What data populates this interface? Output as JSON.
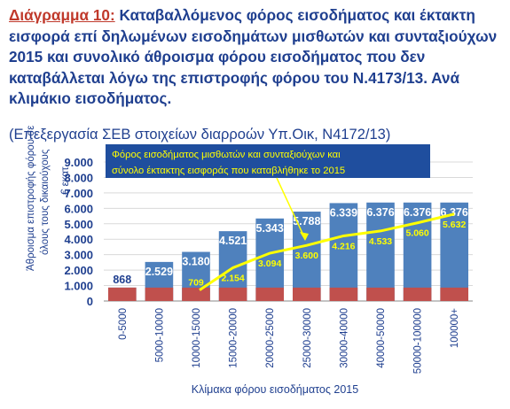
{
  "title_label": "Διάγραμμα 10:",
  "title_text": " Καταβαλλόμενος φόρος εισοδήματος και έκτακτη εισφορά επί δηλωμένων εισοδημάτων μισθωτών και συνταξιούχων 2015 και συνολικό άθροισμα φόρου εισοδήματος που δεν καταβάλλεται λόγω της επιστροφής φόρου του Ν.4173/13. Ανά κλιμάκιο εισοδήματος.",
  "subtitle": "(Επεξεργασία ΣΕΒ στοιχείων διαρροών Υπ.Οικ, Ν4172/13)",
  "colors": {
    "bar": "#4f81bd",
    "base": "#c0504d",
    "line": "#ffff00",
    "callout": "#1f4e9e"
  },
  "chart_data": {
    "type": "bar",
    "categories": [
      "0-5000",
      "5000-10000",
      "10000-15000",
      "15000-20000",
      "20000-25000",
      "25000-30000",
      "30000-40000",
      "40000-50000",
      "50000-100000",
      "100000+"
    ],
    "series": [
      {
        "values": [
          868,
          2529,
          3180,
          4521,
          5343,
          5788,
          6339,
          6376,
          6376,
          6376
        ],
        "labels": [
          "868",
          "2.529",
          "3.180",
          "4.521",
          "5.343",
          "5.788",
          "6.339",
          "6.376",
          "6.376",
          "6.376"
        ]
      },
      {
        "name": "Φόρος εισοδήματος μισθωτών και συνταξιούχων και σύνολο έκτακτης εισφοράς που καταβλήθηκε το 2015",
        "type": "line",
        "values": [
          null,
          null,
          709,
          2154,
          3094,
          3600,
          4216,
          4533,
          5060,
          5632
        ],
        "labels": [
          "",
          "",
          "709",
          "2.154",
          "3.094",
          "3.600",
          "4.216",
          "4.533",
          "5.060",
          "5.632"
        ]
      }
    ],
    "ylim": [
      0,
      9000
    ],
    "yticks": [
      "0",
      "1.000",
      "2.000",
      "3.000",
      "4.000",
      "5.000",
      "6.000",
      "7.000",
      "8.000",
      "9.000"
    ],
    "ylabel": "Άθροισμα επιστροφής φόρου σε όλους τους δικαιούχους",
    "yunit": "€ εκατ.",
    "xlabel": "Κλίμακα φόρου εισοδήματος 2015",
    "callout": "Φόρος εισοδήματος μισθωτών και συνταξιούχων και σύνολο έκτακτης εισφοράς που καταβλήθηκε το 2015",
    "grid": true
  }
}
